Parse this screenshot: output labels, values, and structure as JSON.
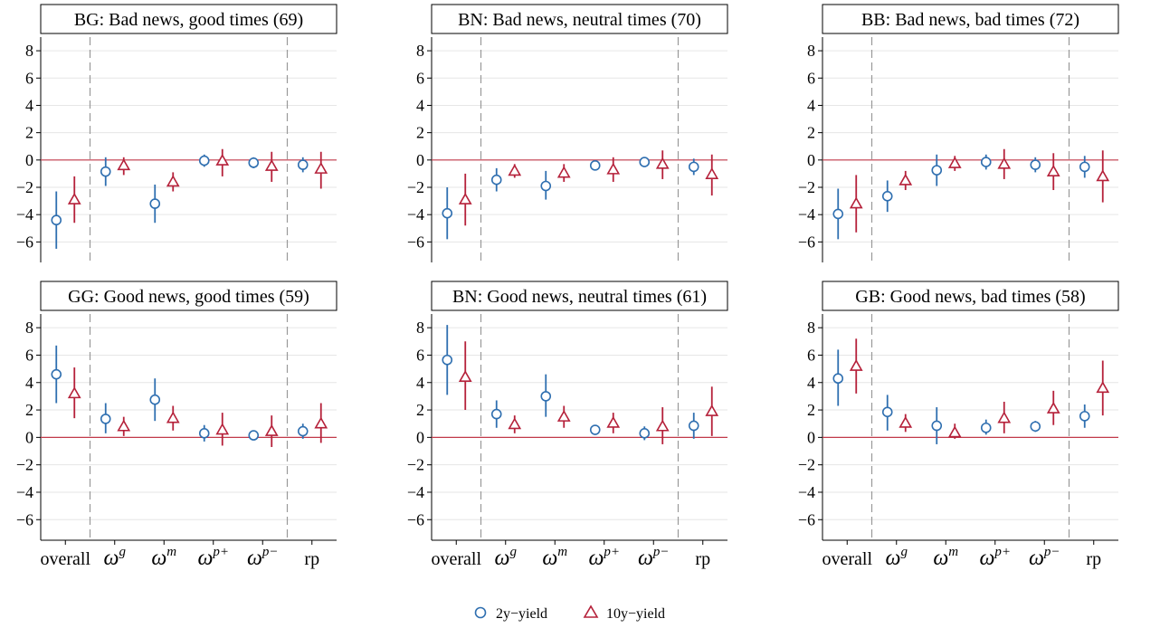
{
  "colors": {
    "series_2y": "#2f6fb0",
    "series_10y": "#b5213a",
    "zero_line": "#c23a4a",
    "grid": "#e6e6e6",
    "separator": "#999999"
  },
  "chart_data": {
    "type": "scatter",
    "ylim": [
      -7.5,
      9
    ],
    "yticks": [
      "−6",
      "−4",
      "−2",
      "0",
      "2",
      "4",
      "6",
      "8"
    ],
    "ytick_values": [
      -6,
      -4,
      -2,
      0,
      2,
      4,
      6,
      8
    ],
    "categories": [
      {
        "base": "overall",
        "sup": ""
      },
      {
        "base": "ω",
        "sup": "g"
      },
      {
        "base": "ω",
        "sup": "m"
      },
      {
        "base": "ω",
        "sup": "p+"
      },
      {
        "base": "ω",
        "sup": "p−"
      },
      {
        "base": "rp",
        "sup": ""
      }
    ],
    "legend": {
      "position": "bottom-center",
      "items": [
        "2y−yield",
        "10y−yield"
      ]
    },
    "panels": [
      {
        "title": "BG: Bad news, good times (69)",
        "separators": [
          1,
          5
        ],
        "series": [
          {
            "marker": "circle",
            "values": [
              -4.4,
              -0.85,
              -3.2,
              -0.05,
              -0.2,
              -0.35
            ],
            "ci": [
              [
                -6.5,
                -2.3
              ],
              [
                -1.9,
                0.2
              ],
              [
                -4.6,
                -1.8
              ],
              [
                -0.5,
                0.4
              ],
              [
                -0.6,
                0.2
              ],
              [
                -0.9,
                0.2
              ]
            ]
          },
          {
            "marker": "triangle",
            "values": [
              -2.9,
              -0.4,
              -1.6,
              -0.05,
              -0.45,
              -0.65
            ],
            "ci": [
              [
                -4.6,
                -1.2
              ],
              [
                -1.1,
                0.2
              ],
              [
                -2.3,
                -0.9
              ],
              [
                -1.2,
                0.8
              ],
              [
                -1.6,
                0.6
              ],
              [
                -2.1,
                0.6
              ]
            ]
          }
        ]
      },
      {
        "title": "BN: Bad news, neutral times (70)",
        "separators": [
          1,
          5
        ],
        "series": [
          {
            "marker": "circle",
            "values": [
              -3.9,
              -1.45,
              -1.9,
              -0.4,
              -0.15,
              -0.5
            ],
            "ci": [
              [
                -5.8,
                -2.0
              ],
              [
                -2.3,
                -0.6
              ],
              [
                -2.9,
                -0.8
              ],
              [
                -0.7,
                -0.1
              ],
              [
                -0.4,
                0.15
              ],
              [
                -1.1,
                0.1
              ]
            ]
          },
          {
            "marker": "triangle",
            "values": [
              -2.9,
              -0.8,
              -0.95,
              -0.7,
              -0.3,
              -1.05
            ],
            "ci": [
              [
                -4.8,
                -1.0
              ],
              [
                -1.3,
                -0.3
              ],
              [
                -1.6,
                -0.3
              ],
              [
                -1.6,
                0.2
              ],
              [
                -1.4,
                0.7
              ],
              [
                -2.6,
                0.4
              ]
            ]
          }
        ]
      },
      {
        "title": "BB: Bad news, bad times (72)",
        "separators": [
          1,
          5
        ],
        "series": [
          {
            "marker": "circle",
            "values": [
              -3.95,
              -2.65,
              -0.75,
              -0.15,
              -0.35,
              -0.5
            ],
            "ci": [
              [
                -5.8,
                -2.1
              ],
              [
                -3.8,
                -1.5
              ],
              [
                -1.9,
                0.4
              ],
              [
                -0.7,
                0.4
              ],
              [
                -0.9,
                0.2
              ],
              [
                -1.3,
                0.3
              ]
            ]
          },
          {
            "marker": "triangle",
            "values": [
              -3.2,
              -1.5,
              -0.25,
              -0.3,
              -0.85,
              -1.2
            ],
            "ci": [
              [
                -5.3,
                -1.1
              ],
              [
                -2.2,
                -0.8
              ],
              [
                -0.8,
                0.3
              ],
              [
                -1.4,
                0.8
              ],
              [
                -2.2,
                0.5
              ],
              [
                -3.1,
                0.7
              ]
            ]
          }
        ]
      },
      {
        "title": "GG: Good news, good times (59)",
        "separators": [
          1,
          5
        ],
        "series": [
          {
            "marker": "circle",
            "values": [
              4.6,
              1.35,
              2.75,
              0.3,
              0.15,
              0.45
            ],
            "ci": [
              [
                2.5,
                6.7
              ],
              [
                0.3,
                2.5
              ],
              [
                1.2,
                4.3
              ],
              [
                -0.3,
                0.9
              ],
              [
                -0.2,
                0.5
              ],
              [
                -0.1,
                1.0
              ]
            ]
          },
          {
            "marker": "triangle",
            "values": [
              3.2,
              0.8,
              1.4,
              0.55,
              0.45,
              1.0
            ],
            "ci": [
              [
                1.4,
                5.1
              ],
              [
                0.1,
                1.5
              ],
              [
                0.5,
                2.3
              ],
              [
                -0.6,
                1.8
              ],
              [
                -0.7,
                1.6
              ],
              [
                -0.4,
                2.5
              ]
            ]
          }
        ]
      },
      {
        "title": "BN: Good news, neutral times (61)",
        "separators": [
          1,
          5
        ],
        "series": [
          {
            "marker": "circle",
            "values": [
              5.65,
              1.7,
              3.0,
              0.55,
              0.3,
              0.85
            ],
            "ci": [
              [
                3.1,
                8.2
              ],
              [
                0.7,
                2.7
              ],
              [
                1.5,
                4.6
              ],
              [
                0.3,
                0.8
              ],
              [
                -0.2,
                0.8
              ],
              [
                -0.1,
                1.8
              ]
            ]
          },
          {
            "marker": "triangle",
            "values": [
              4.4,
              0.95,
              1.5,
              1.05,
              0.8,
              1.9
            ],
            "ci": [
              [
                2.0,
                7.0
              ],
              [
                0.3,
                1.6
              ],
              [
                0.7,
                2.3
              ],
              [
                0.3,
                1.8
              ],
              [
                -0.5,
                2.2
              ],
              [
                0.1,
                3.7
              ]
            ]
          }
        ]
      },
      {
        "title": "GB: Good news, bad times (58)",
        "separators": [
          1,
          5
        ],
        "series": [
          {
            "marker": "circle",
            "values": [
              4.3,
              1.85,
              0.85,
              0.7,
              0.8,
              1.55
            ],
            "ci": [
              [
                2.3,
                6.4
              ],
              [
                0.5,
                3.1
              ],
              [
                -0.5,
                2.2
              ],
              [
                0.2,
                1.3
              ],
              [
                0.4,
                1.2
              ],
              [
                0.7,
                2.4
              ]
            ]
          },
          {
            "marker": "triangle",
            "values": [
              5.2,
              1.05,
              0.35,
              1.4,
              2.1,
              3.6
            ],
            "ci": [
              [
                3.2,
                7.2
              ],
              [
                0.4,
                1.7
              ],
              [
                -0.1,
                1.0
              ],
              [
                0.3,
                2.6
              ],
              [
                0.9,
                3.4
              ],
              [
                1.6,
                5.6
              ]
            ]
          }
        ]
      }
    ]
  }
}
